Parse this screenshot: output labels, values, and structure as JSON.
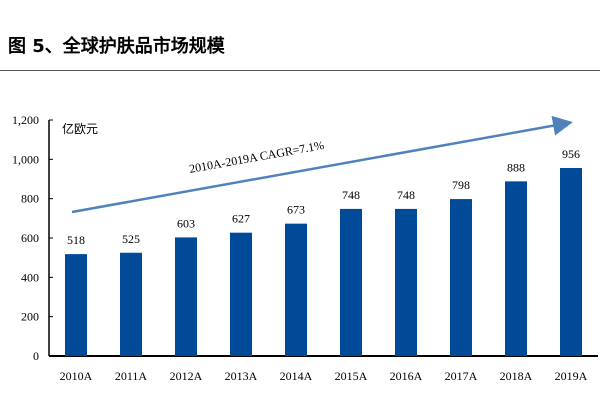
{
  "title": "图 5、全球护肤品市场规模",
  "chart_data": {
    "type": "bar",
    "title": "全球护肤品市场规模",
    "ylabel": "亿欧元",
    "xlabel": "",
    "categories": [
      "2010A",
      "2011A",
      "2012A",
      "2013A",
      "2014A",
      "2015A",
      "2016A",
      "2017A",
      "2018A",
      "2019A"
    ],
    "values": [
      518,
      525,
      603,
      627,
      673,
      748,
      748,
      798,
      888,
      956
    ],
    "ylim": [
      0,
      1200
    ],
    "yticks": [
      0,
      200,
      400,
      600,
      800,
      1000,
      1200
    ],
    "ytick_labels": [
      "0",
      "200",
      "400",
      "600",
      "800",
      "1,000",
      "1,200"
    ],
    "annotation": "2010A-2019A CAGR=7.1%",
    "bar_color": "#004a97",
    "arrow_color": "#4f81bd",
    "grid": false
  }
}
